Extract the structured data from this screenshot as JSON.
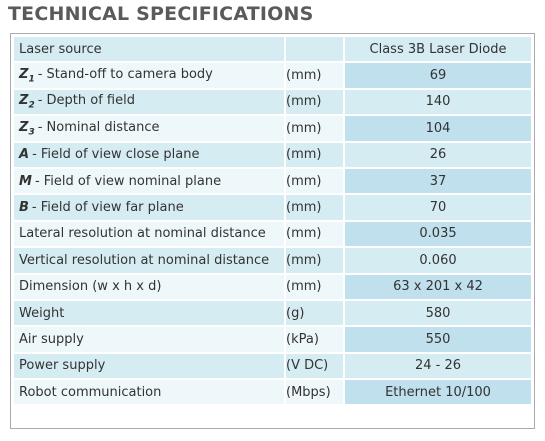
{
  "header": {
    "title": "TECHNICAL SPECIFICATIONS"
  },
  "table": {
    "rows": [
      {
        "label": "Laser source",
        "unit": "",
        "value": "Class 3B Laser Diode"
      },
      {
        "prefix": "Z",
        "sub": "1",
        "label": "- Stand-off to camera body",
        "unit": "(mm)",
        "value": "69"
      },
      {
        "prefix": "Z",
        "sub": "2",
        "label": "- Depth of field",
        "unit": "(mm)",
        "value": "140"
      },
      {
        "prefix": "Z",
        "sub": "3",
        "label": "- Nominal distance",
        "unit": "(mm)",
        "value": "104"
      },
      {
        "prefix": "A",
        "label": "- Field of view close plane",
        "unit": "(mm)",
        "value": "26"
      },
      {
        "prefix": "M",
        "label": "- Field of view nominal plane",
        "unit": "(mm)",
        "value": "37"
      },
      {
        "prefix": "B",
        "label": "- Field of view far plane",
        "unit": "(mm)",
        "value": "70"
      },
      {
        "label": "Lateral resolution at nominal distance",
        "unit": "(mm)",
        "value": "0.035"
      },
      {
        "label": "Vertical resolution at nominal distance",
        "unit": "(mm)",
        "value": "0.060"
      },
      {
        "label": "Dimension (w x h x d)",
        "unit": "(mm)",
        "value": "63 x 201 x 42"
      },
      {
        "label": "Weight",
        "unit": "(g)",
        "value": "580"
      },
      {
        "label": "Air supply",
        "unit": "(kPa)",
        "value": "550"
      },
      {
        "label": "Power supply",
        "unit": "(V DC)",
        "value": "24 - 26"
      },
      {
        "label": "Robot communication",
        "unit": "(Mbps)",
        "value": "Ethernet 10/100"
      }
    ]
  }
}
